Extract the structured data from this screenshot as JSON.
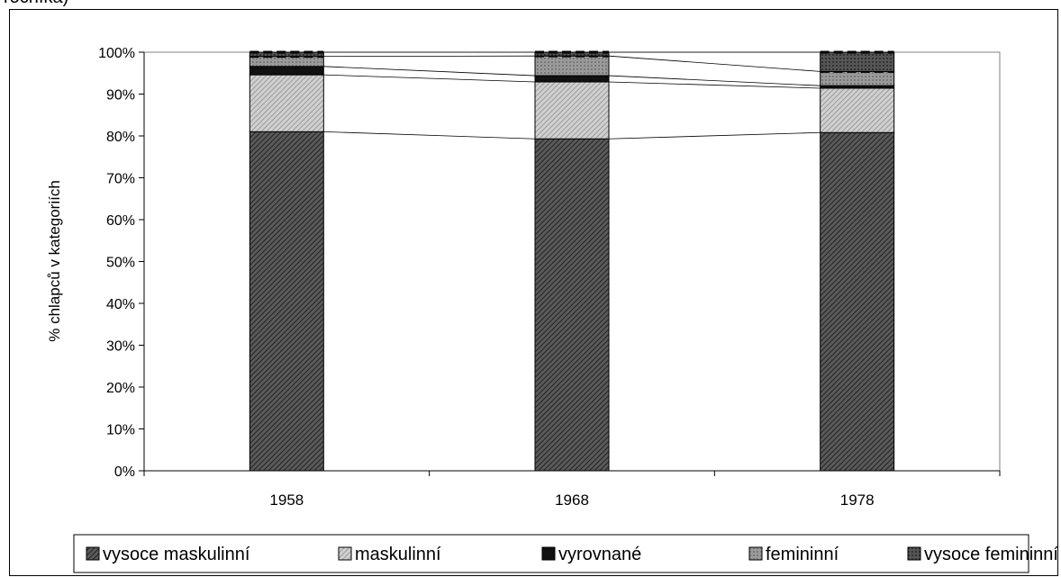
{
  "header_fragment": "ročníka)",
  "chart_data": {
    "type": "bar",
    "stacked": true,
    "percent": true,
    "categories": [
      "1958",
      "1968",
      "1978"
    ],
    "ylabel": "% chlapců v kategoriích",
    "xlabel": "",
    "ylim": [
      0,
      100
    ],
    "yticks": [
      "0%",
      "10%",
      "20%",
      "30%",
      "40%",
      "50%",
      "60%",
      "70%",
      "80%",
      "90%",
      "100%"
    ],
    "series_lines": true,
    "legend_position": "bottom",
    "series": [
      {
        "name": "vysoce maskulinní",
        "values": [
          81.0,
          79.3,
          80.8
        ],
        "color": "#555555",
        "pattern": "hatch-dark"
      },
      {
        "name": "maskulinní",
        "values": [
          13.6,
          13.6,
          10.6
        ],
        "color": "#bbbbbb",
        "pattern": "hatch-light"
      },
      {
        "name": "vyrovnané",
        "values": [
          2.0,
          1.5,
          0.6
        ],
        "color": "#111111",
        "pattern": "solid-black"
      },
      {
        "name": "femininní",
        "values": [
          2.4,
          4.7,
          3.4
        ],
        "color": "#888888",
        "pattern": "grid-gray"
      },
      {
        "name": "vysoce femininní",
        "values": [
          1.0,
          0.9,
          4.6
        ],
        "color": "#444444",
        "pattern": "grid-dark"
      }
    ]
  }
}
